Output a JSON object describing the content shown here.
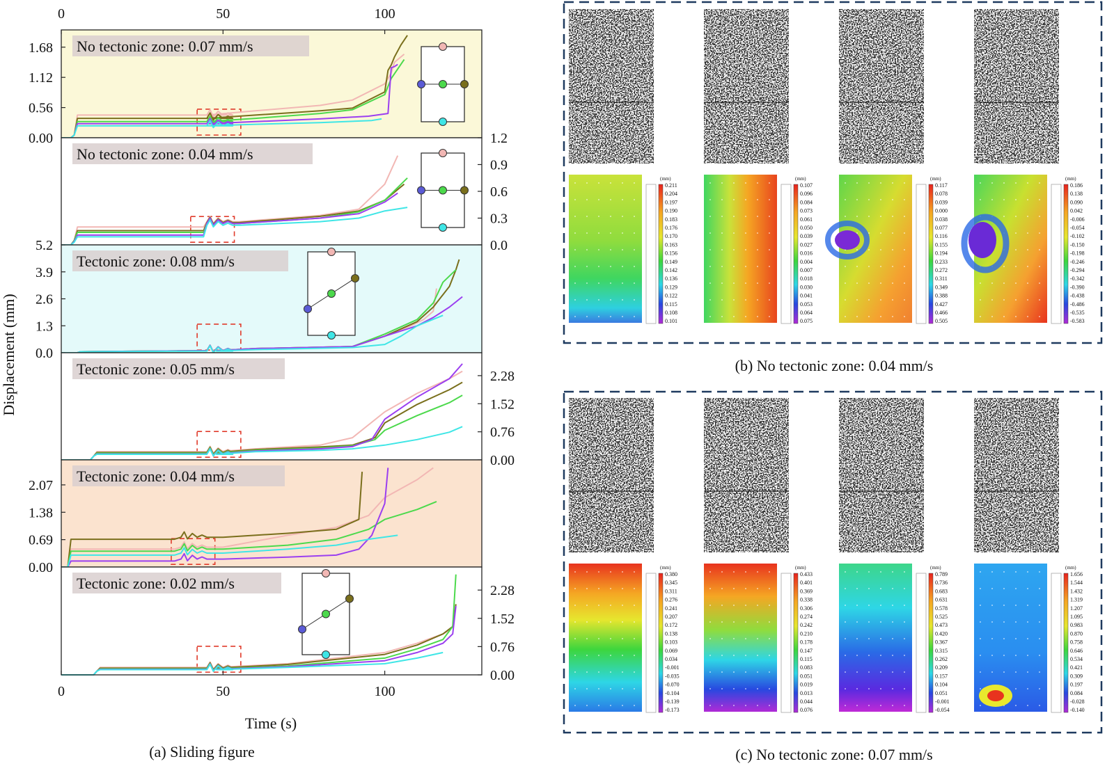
{
  "figure": {
    "caption_a": "(a)  Sliding figure",
    "caption_b": "(b) No tectonic zone: 0.04 mm/s",
    "caption_c": "(c) No tectonic zone: 0.07 mm/s",
    "ylabel": "Displacement (mm)",
    "xlabel": "Time (s)",
    "x_ticks_top": [
      "0",
      "50",
      "100"
    ],
    "x_ticks_bottom": [
      "0",
      "50",
      "100"
    ],
    "colorbar_unit": "(mm)"
  },
  "colors": {
    "pink": "#f2b7b4",
    "olive": "#7a6f1c",
    "green": "#4cd94c",
    "purple": "#9b3ff0",
    "cyan": "#3fe6e6",
    "blue_point": "#5b5bd6",
    "frame_dash": "#1e3a5f",
    "marker_dash": "#e03a2a"
  },
  "chart_data": [
    {
      "type": "line",
      "title": "No tectonic zone: 0.07 mm/s",
      "background": "#fbf8d8",
      "axis_side": "left",
      "ylim": [
        0,
        2.0
      ],
      "xlim": [
        0,
        130
      ],
      "yticks": [
        0.0,
        0.56,
        1.12,
        1.68
      ],
      "ytick_labels": [
        "0.00",
        "0.56",
        "1.12",
        "1.68"
      ],
      "series": [
        {
          "color": "pink",
          "x": [
            0,
            3,
            4,
            5,
            45,
            60,
            80,
            90,
            100,
            102,
            103,
            106
          ],
          "y": [
            0,
            0,
            0.05,
            0.42,
            0.42,
            0.5,
            0.6,
            0.7,
            1.0,
            1.2,
            1.4,
            1.55
          ]
        },
        {
          "color": "olive",
          "x": [
            0,
            3,
            4,
            5,
            45,
            60,
            80,
            90,
            100,
            101,
            102,
            103,
            105,
            107
          ],
          "y": [
            0,
            0,
            0.05,
            0.36,
            0.36,
            0.42,
            0.5,
            0.55,
            0.85,
            1.25,
            1.35,
            1.5,
            1.72,
            1.9
          ]
        },
        {
          "color": "green",
          "x": [
            0,
            3,
            4,
            5,
            45,
            60,
            80,
            90,
            100,
            102,
            106
          ],
          "y": [
            0,
            0,
            0.05,
            0.3,
            0.3,
            0.36,
            0.45,
            0.52,
            0.8,
            1.1,
            1.45
          ]
        },
        {
          "color": "purple",
          "x": [
            0,
            3,
            4,
            5,
            45,
            60,
            80,
            95,
            101,
            102,
            103,
            104
          ],
          "y": [
            0,
            0,
            0.05,
            0.26,
            0.26,
            0.3,
            0.35,
            0.4,
            0.45,
            1.3,
            1.32,
            1.36
          ]
        },
        {
          "color": "cyan",
          "x": [
            0,
            3,
            4,
            5,
            45,
            60,
            80,
            96,
            99
          ],
          "y": [
            0,
            0,
            0.05,
            0.22,
            0.22,
            0.25,
            0.28,
            0.32,
            0.35
          ]
        }
      ]
    },
    {
      "type": "line",
      "title": "No tectonic zone: 0.04 mm/s",
      "background": "#ffffff",
      "axis_side": "right",
      "ylim": [
        0,
        1.2
      ],
      "xlim": [
        0,
        130
      ],
      "yticks": [
        0.0,
        0.3,
        0.6,
        0.9,
        1.2
      ],
      "ytick_labels": [
        "0.0",
        "0.3",
        "0.6",
        "0.9",
        "1.2"
      ],
      "series": [
        {
          "color": "pink",
          "x": [
            0,
            3,
            4,
            5,
            44,
            55,
            80,
            92,
            100,
            104
          ],
          "y": [
            0,
            0,
            0.05,
            0.2,
            0.2,
            0.26,
            0.33,
            0.4,
            0.68,
            1.0
          ]
        },
        {
          "color": "olive",
          "x": [
            0,
            3,
            4,
            5,
            44,
            55,
            80,
            92,
            100,
            106
          ],
          "y": [
            0,
            0,
            0.05,
            0.16,
            0.16,
            0.25,
            0.32,
            0.38,
            0.5,
            0.68
          ]
        },
        {
          "color": "green",
          "x": [
            0,
            3,
            4,
            5,
            44,
            55,
            80,
            92,
            100,
            107
          ],
          "y": [
            0,
            0,
            0.05,
            0.14,
            0.14,
            0.24,
            0.3,
            0.37,
            0.5,
            0.75
          ]
        },
        {
          "color": "purple",
          "x": [
            0,
            3,
            4,
            5,
            44,
            55,
            80,
            92,
            100,
            104
          ],
          "y": [
            0,
            0,
            0.04,
            0.11,
            0.11,
            0.24,
            0.3,
            0.35,
            0.48,
            0.58
          ]
        },
        {
          "color": "cyan",
          "x": [
            0,
            3,
            4,
            5,
            44,
            55,
            80,
            92,
            100,
            107
          ],
          "y": [
            0,
            0,
            0.03,
            0.09,
            0.09,
            0.22,
            0.26,
            0.3,
            0.38,
            0.42
          ]
        }
      ]
    },
    {
      "type": "line",
      "title": "Tectonic zone: 0.08 mm/s",
      "background": "#e4fafa",
      "axis_side": "left",
      "ylim": [
        0,
        5.2
      ],
      "xlim": [
        0,
        130
      ],
      "yticks": [
        0.0,
        1.3,
        2.6,
        3.9,
        5.2
      ],
      "ytick_labels": [
        "0.0",
        "1.3",
        "2.6",
        "3.9",
        "5.2"
      ],
      "series": [
        {
          "color": "pink",
          "x": [
            0,
            5,
            6,
            48,
            60,
            90,
            100,
            108,
            112,
            115,
            116
          ],
          "y": [
            0,
            0,
            0.05,
            0.1,
            0.2,
            0.3,
            0.8,
            1.3,
            1.6,
            2.0,
            3.1
          ]
        },
        {
          "color": "olive",
          "x": [
            0,
            5,
            6,
            48,
            60,
            90,
            100,
            110,
            115,
            120,
            122,
            123
          ],
          "y": [
            0,
            0,
            0.05,
            0.1,
            0.2,
            0.3,
            0.8,
            1.5,
            2.2,
            3.2,
            4.0,
            4.5
          ]
        },
        {
          "color": "green",
          "x": [
            0,
            5,
            6,
            48,
            60,
            90,
            100,
            110,
            115,
            118,
            122
          ],
          "y": [
            0,
            0,
            0.05,
            0.1,
            0.2,
            0.3,
            0.9,
            1.6,
            2.4,
            3.4,
            4.0
          ]
        },
        {
          "color": "purple",
          "x": [
            0,
            5,
            6,
            48,
            60,
            90,
            100,
            110,
            115,
            120,
            124
          ],
          "y": [
            0,
            0,
            0.05,
            0.1,
            0.2,
            0.3,
            0.8,
            1.3,
            1.7,
            2.2,
            2.7
          ]
        },
        {
          "color": "cyan",
          "x": [
            0,
            5,
            6,
            48,
            60,
            90,
            100,
            105,
            110,
            118
          ],
          "y": [
            0,
            0,
            0.05,
            0.08,
            0.15,
            0.25,
            0.4,
            0.8,
            1.3,
            1.8
          ]
        }
      ]
    },
    {
      "type": "line",
      "title": "Tectonic zone: 0.05 mm/s",
      "background": "#ffffff",
      "axis_side": "right",
      "ylim": [
        0,
        2.9
      ],
      "xlim": [
        0,
        130
      ],
      "yticks": [
        0.0,
        0.76,
        1.52,
        2.28
      ],
      "ytick_labels": [
        "0.00",
        "0.76",
        "1.52",
        "2.28"
      ],
      "series": [
        {
          "color": "pink",
          "x": [
            0,
            9,
            10,
            11,
            48,
            60,
            80,
            90,
            100,
            110,
            120,
            124
          ],
          "y": [
            0,
            0,
            0.1,
            0.22,
            0.22,
            0.3,
            0.4,
            0.6,
            1.3,
            1.8,
            2.2,
            2.4
          ]
        },
        {
          "color": "olive",
          "x": [
            0,
            9,
            10,
            11,
            48,
            60,
            80,
            90,
            97,
            100,
            110,
            120,
            124
          ],
          "y": [
            0,
            0,
            0.1,
            0.2,
            0.2,
            0.28,
            0.35,
            0.4,
            0.6,
            1.0,
            1.5,
            1.9,
            2.1
          ]
        },
        {
          "color": "green",
          "x": [
            0,
            9,
            10,
            11,
            48,
            60,
            80,
            90,
            97,
            100,
            110,
            120,
            124
          ],
          "y": [
            0,
            0,
            0.1,
            0.18,
            0.18,
            0.26,
            0.32,
            0.38,
            0.55,
            0.8,
            1.2,
            1.55,
            1.75
          ]
        },
        {
          "color": "purple",
          "x": [
            0,
            9,
            10,
            11,
            48,
            60,
            80,
            90,
            96,
            100,
            110,
            120,
            124
          ],
          "y": [
            0,
            0,
            0.1,
            0.16,
            0.16,
            0.24,
            0.3,
            0.36,
            0.55,
            1.1,
            1.7,
            2.2,
            2.6
          ]
        },
        {
          "color": "cyan",
          "x": [
            0,
            9,
            10,
            11,
            48,
            60,
            80,
            90,
            100,
            110,
            120,
            124
          ],
          "y": [
            0,
            0,
            0.1,
            0.15,
            0.15,
            0.22,
            0.26,
            0.3,
            0.4,
            0.55,
            0.75,
            0.9
          ]
        }
      ]
    },
    {
      "type": "line",
      "title": "Tectonic zone: 0.04 mm/s",
      "background": "#fbe3cf",
      "axis_side": "left",
      "ylim": [
        0,
        2.7
      ],
      "xlim": [
        0,
        130
      ],
      "yticks": [
        0.0,
        0.69,
        1.38,
        2.07
      ],
      "ytick_labels": [
        "0.00",
        "0.69",
        "1.38",
        "2.07"
      ],
      "series": [
        {
          "color": "pink",
          "x": [
            0,
            2,
            3,
            35,
            50,
            70,
            85,
            95,
            100,
            110,
            115
          ],
          "y": [
            0,
            0,
            0.45,
            0.45,
            0.5,
            0.8,
            1.0,
            1.3,
            1.75,
            2.2,
            2.5
          ]
        },
        {
          "color": "olive",
          "x": [
            0,
            2,
            3,
            35,
            50,
            70,
            85,
            92,
            93
          ],
          "y": [
            0,
            0,
            0.7,
            0.7,
            0.75,
            0.85,
            0.95,
            1.2,
            2.4
          ]
        },
        {
          "color": "green",
          "x": [
            0,
            2,
            3,
            35,
            50,
            70,
            85,
            95,
            100,
            110,
            116
          ],
          "y": [
            0,
            0,
            0.4,
            0.4,
            0.45,
            0.55,
            0.7,
            0.95,
            1.2,
            1.45,
            1.65
          ]
        },
        {
          "color": "purple",
          "x": [
            0,
            2,
            3,
            35,
            50,
            70,
            85,
            92,
            96,
            100,
            101
          ],
          "y": [
            0,
            0,
            0.15,
            0.15,
            0.2,
            0.25,
            0.3,
            0.45,
            0.8,
            1.6,
            2.5
          ]
        },
        {
          "color": "cyan",
          "x": [
            0,
            2,
            3,
            35,
            50,
            70,
            85,
            95,
            104
          ],
          "y": [
            0,
            0,
            0.3,
            0.3,
            0.35,
            0.45,
            0.55,
            0.7,
            0.8
          ]
        }
      ]
    },
    {
      "type": "line",
      "title": "Tectonic zone: 0.02 mm/s",
      "background": "#ffffff",
      "axis_side": "right",
      "ylim": [
        0,
        2.9
      ],
      "xlim": [
        0,
        130
      ],
      "yticks": [
        0.0,
        0.76,
        1.52,
        2.28
      ],
      "ytick_labels": [
        "0.00",
        "0.76",
        "1.52",
        "2.28"
      ],
      "series": [
        {
          "color": "pink",
          "x": [
            0,
            10,
            11,
            12,
            48,
            70,
            100,
            110,
            118,
            120
          ],
          "y": [
            0,
            0,
            0.1,
            0.2,
            0.2,
            0.3,
            0.6,
            0.85,
            1.1,
            1.2
          ]
        },
        {
          "color": "olive",
          "x": [
            0,
            10,
            11,
            12,
            48,
            70,
            100,
            110,
            118,
            121,
            122
          ],
          "y": [
            0,
            0,
            0.1,
            0.18,
            0.18,
            0.28,
            0.55,
            0.8,
            1.1,
            1.3,
            1.9
          ]
        },
        {
          "color": "green",
          "x": [
            0,
            10,
            11,
            12,
            48,
            70,
            100,
            110,
            118,
            121,
            122
          ],
          "y": [
            0,
            0,
            0.1,
            0.16,
            0.16,
            0.24,
            0.45,
            0.7,
            0.95,
            1.3,
            2.7
          ]
        },
        {
          "color": "purple",
          "x": [
            0,
            10,
            11,
            12,
            48,
            70,
            100,
            110,
            118,
            121,
            122
          ],
          "y": [
            0,
            0,
            0.1,
            0.15,
            0.15,
            0.22,
            0.38,
            0.6,
            0.85,
            1.1,
            1.85
          ]
        },
        {
          "color": "cyan",
          "x": [
            0,
            10,
            11,
            12,
            48,
            70,
            100,
            110,
            118
          ],
          "y": [
            0,
            0,
            0.1,
            0.14,
            0.14,
            0.2,
            0.3,
            0.45,
            0.6
          ]
        }
      ]
    }
  ],
  "panel_b": {
    "colorbars": [
      [
        "0.211",
        "0.204",
        "0.197",
        "0.190",
        "0.183",
        "0.176",
        "0.170",
        "0.163",
        "0.156",
        "0.149",
        "0.142",
        "0.136",
        "0.129",
        "0.122",
        "0.115",
        "0.108",
        "0.101"
      ],
      [
        "0.107",
        "0.096",
        "0.084",
        "0.073",
        "0.061",
        "0.050",
        "0.039",
        "0.027",
        "0.016",
        "0.004",
        "0.007",
        "0.018",
        "0.030",
        "0.041",
        "0.053",
        "0.064",
        "0.075"
      ],
      [
        "0.117",
        "0.078",
        "0.039",
        "0.000",
        "0.038",
        "0.077",
        "0.116",
        "0.155",
        "0.194",
        "0.233",
        "0.272",
        "0.311",
        "0.349",
        "0.388",
        "0.427",
        "0.466",
        "0.505"
      ],
      [
        "0.186",
        "0.138",
        "0.090",
        "0.042",
        "-0.006",
        "-0.054",
        "-0.102",
        "-0.150",
        "-0.198",
        "-0.246",
        "-0.294",
        "-0.342",
        "-0.390",
        "-0.438",
        "-0.486",
        "-0.535",
        "-0.583"
      ]
    ]
  },
  "panel_c": {
    "colorbars": [
      [
        "0.380",
        "0.345",
        "0.311",
        "0.276",
        "0.241",
        "0.207",
        "0.172",
        "0.138",
        "0.103",
        "0.069",
        "0.034",
        "-0.001",
        "-0.035",
        "-0.070",
        "-0.104",
        "-0.139",
        "-0.173"
      ],
      [
        "0.433",
        "0.401",
        "0.369",
        "0.338",
        "0.306",
        "0.274",
        "0.242",
        "0.210",
        "0.178",
        "0.147",
        "0.115",
        "0.083",
        "0.051",
        "0.019",
        "0.013",
        "0.044",
        "0.076"
      ],
      [
        "0.789",
        "0.736",
        "0.683",
        "0.631",
        "0.578",
        "0.525",
        "0.473",
        "0.420",
        "0.367",
        "0.315",
        "0.262",
        "0.209",
        "0.157",
        "0.104",
        "0.051",
        "-0.001",
        "-0.054"
      ],
      [
        "1.656",
        "1.544",
        "1.432",
        "1.319",
        "1.207",
        "1.095",
        "0.983",
        "0.870",
        "0.758",
        "0.646",
        "0.534",
        "0.421",
        "0.309",
        "0.197",
        "0.084",
        "-0.028",
        "-0.140"
      ]
    ]
  }
}
